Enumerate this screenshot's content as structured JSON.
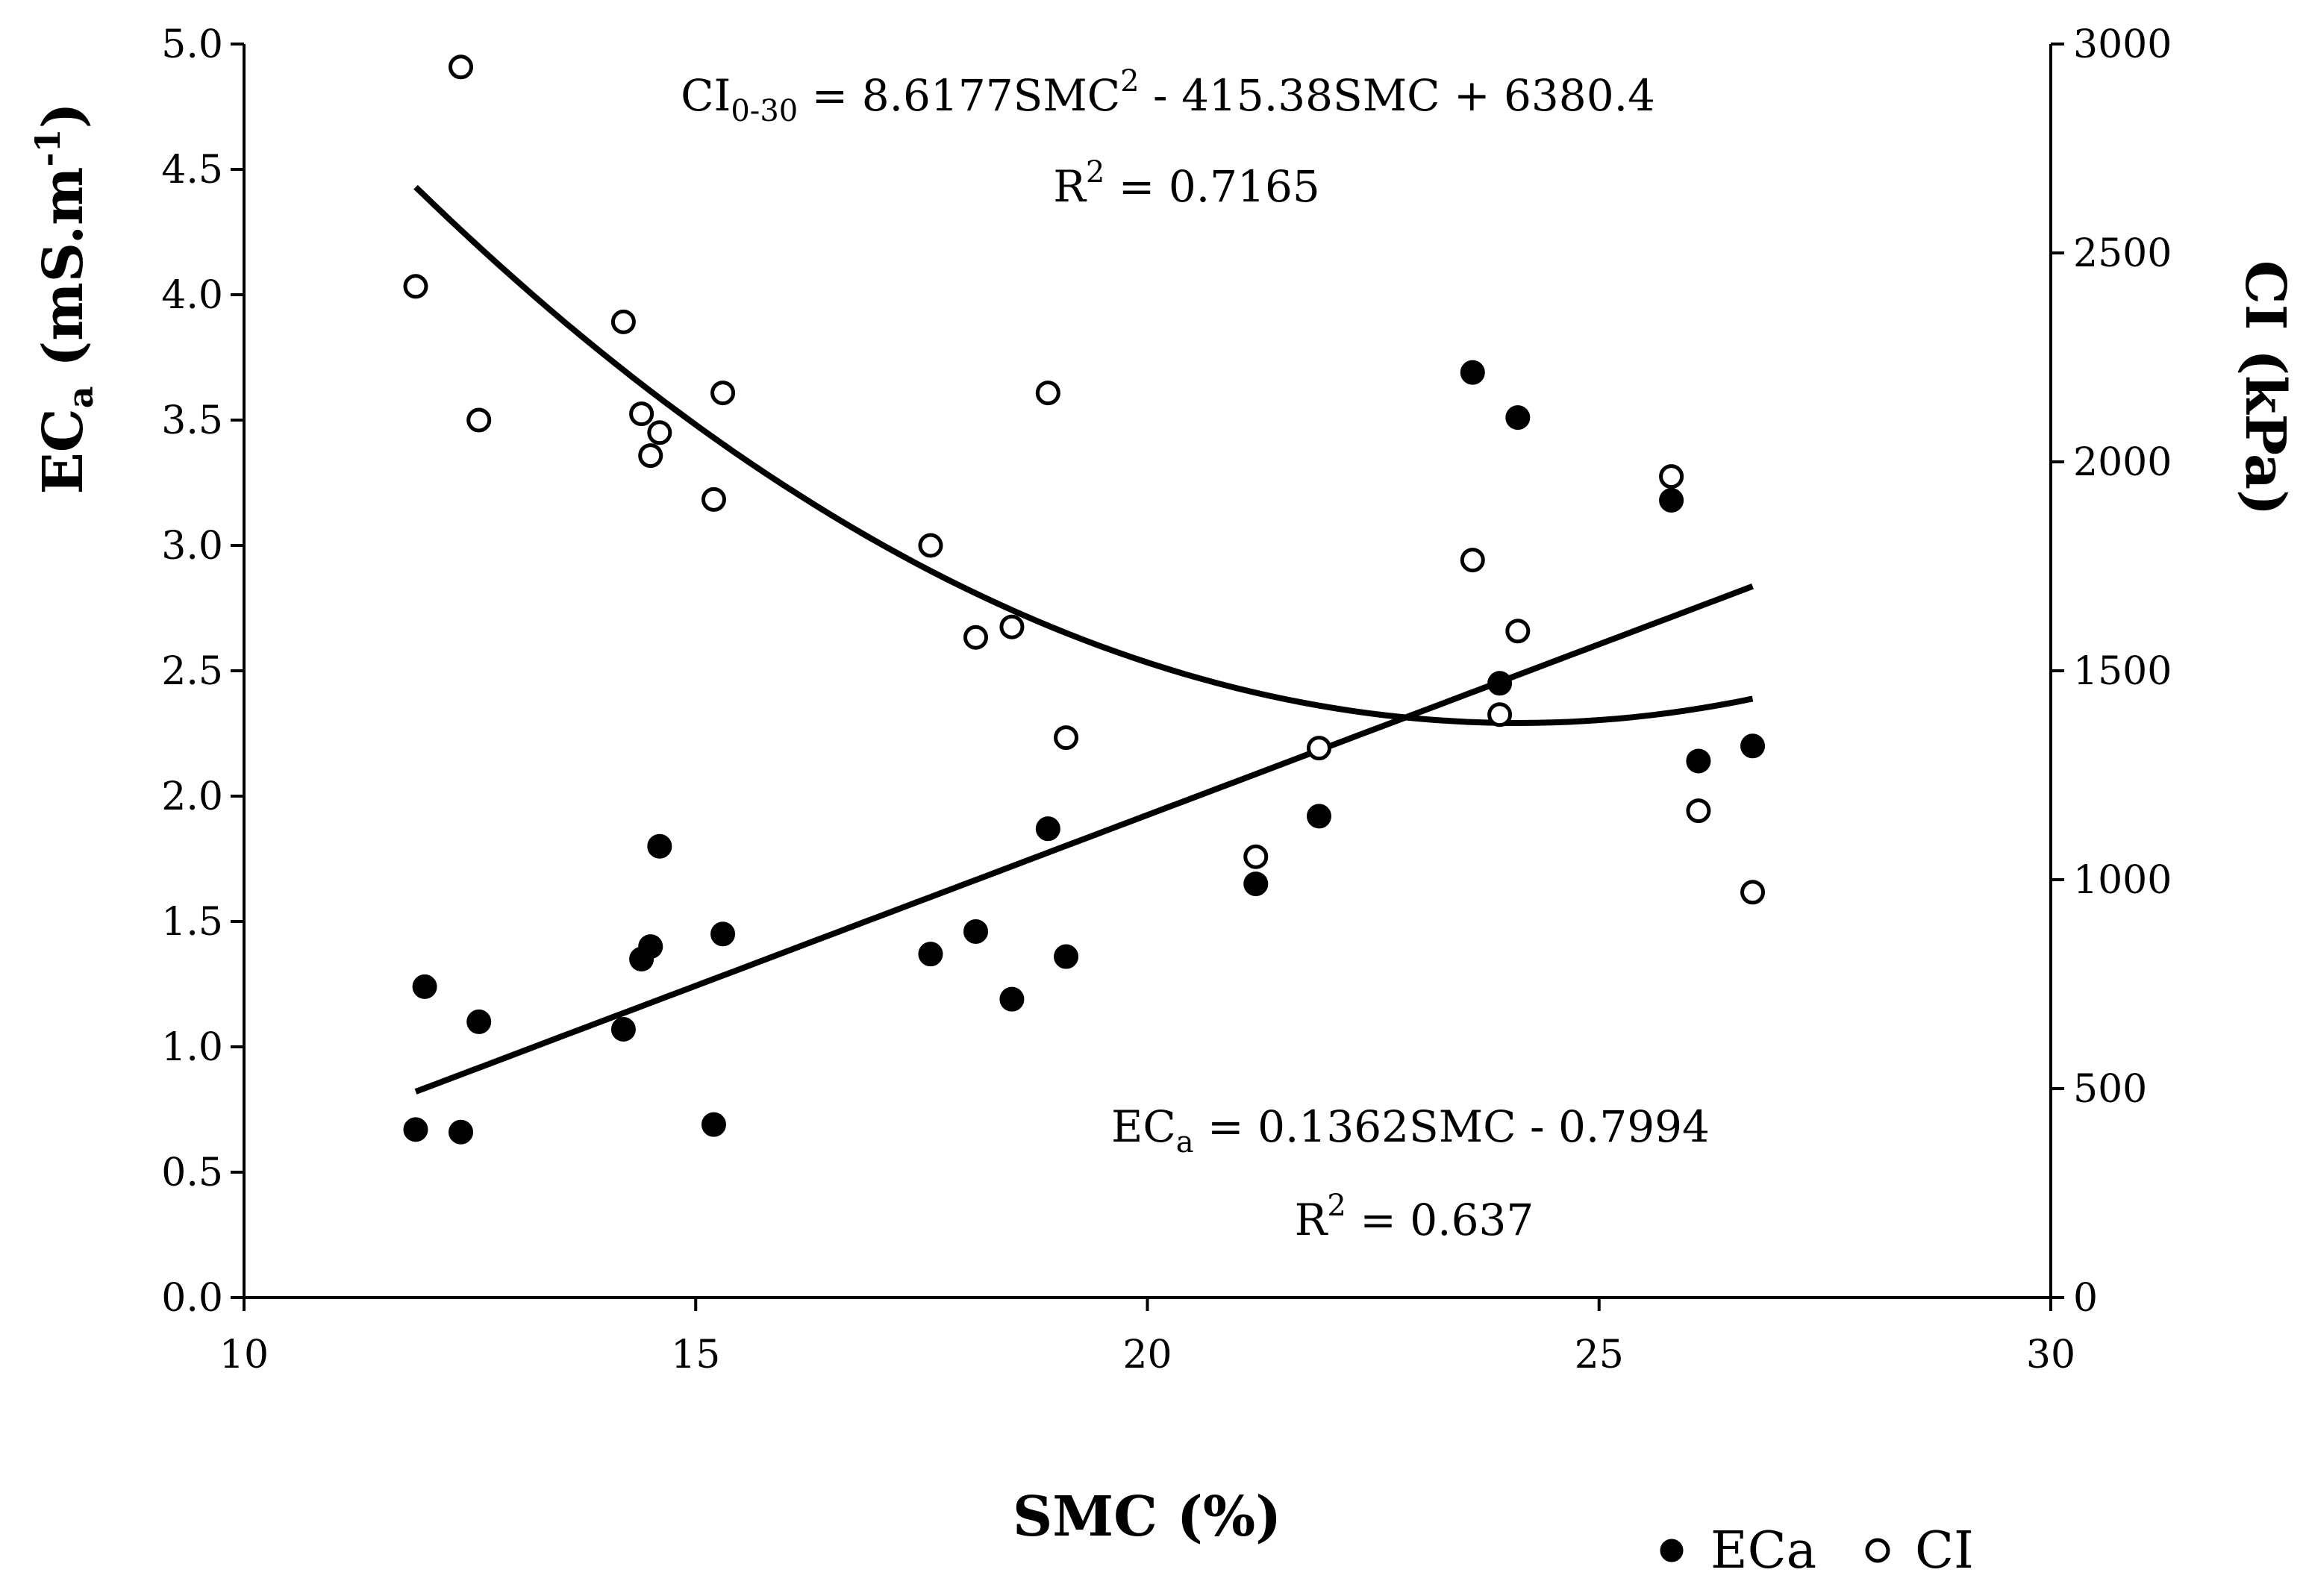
{
  "chart_data": {
    "type": "scatter",
    "xlabel": "SMC (%)",
    "y_left_label": {
      "main": "EC",
      "sub": "a",
      "rest": " (mS.m",
      "sup": "-1",
      "close": ")"
    },
    "y_right_label": "CI (kPa)",
    "x_axis": {
      "min": 10,
      "max": 30,
      "ticks": [
        10,
        15,
        20,
        25,
        30
      ]
    },
    "y_left": {
      "min": 0,
      "max": 5,
      "ticks": [
        "0.0",
        "0.5",
        "1.0",
        "1.5",
        "2.0",
        "2.5",
        "3.0",
        "3.5",
        "4.0",
        "4.5",
        "5.0"
      ]
    },
    "y_right": {
      "min": 0,
      "max": 3000,
      "ticks": [
        "0",
        "500",
        "1000",
        "1500",
        "2000",
        "2500",
        "3000"
      ]
    },
    "series": [
      {
        "name": "ECa",
        "axis": "left",
        "marker": "filled-circle",
        "points": [
          [
            11.9,
            0.67
          ],
          [
            12.0,
            1.24
          ],
          [
            12.4,
            0.66
          ],
          [
            12.6,
            1.1
          ],
          [
            14.2,
            1.07
          ],
          [
            14.4,
            1.35
          ],
          [
            14.5,
            1.4
          ],
          [
            14.6,
            1.8
          ],
          [
            15.2,
            0.69
          ],
          [
            15.3,
            1.45
          ],
          [
            17.6,
            1.37
          ],
          [
            18.1,
            1.46
          ],
          [
            18.5,
            1.19
          ],
          [
            18.9,
            1.87
          ],
          [
            19.1,
            1.36
          ],
          [
            21.2,
            1.65
          ],
          [
            21.9,
            1.92
          ],
          [
            23.6,
            3.69
          ],
          [
            23.9,
            2.45
          ],
          [
            24.1,
            3.51
          ],
          [
            25.8,
            3.18
          ],
          [
            26.1,
            2.14
          ],
          [
            26.7,
            2.2
          ]
        ]
      },
      {
        "name": "CI",
        "axis": "right",
        "marker": "open-circle",
        "points": [
          [
            11.9,
            2420
          ],
          [
            12.4,
            2945
          ],
          [
            12.6,
            2100
          ],
          [
            14.2,
            2335
          ],
          [
            14.4,
            2115
          ],
          [
            14.5,
            2015
          ],
          [
            14.6,
            2070
          ],
          [
            15.2,
            1910
          ],
          [
            15.3,
            2165
          ],
          [
            17.6,
            1800
          ],
          [
            18.1,
            1580
          ],
          [
            18.5,
            1605
          ],
          [
            18.9,
            2165
          ],
          [
            19.1,
            1340
          ],
          [
            21.2,
            1055
          ],
          [
            21.9,
            1315
          ],
          [
            23.6,
            1765
          ],
          [
            23.9,
            1395
          ],
          [
            24.1,
            1595
          ],
          [
            25.8,
            1965
          ],
          [
            26.1,
            1165
          ],
          [
            26.7,
            970
          ]
        ]
      }
    ],
    "trendlines": [
      {
        "series": "CI",
        "type": "polynomial",
        "coefficients": [
          8.6177,
          -415.38,
          6380.4
        ],
        "x_range": [
          11.9,
          26.7
        ]
      },
      {
        "series": "ECa",
        "type": "linear",
        "slope": 0.1362,
        "intercept": -0.7994,
        "x_range": [
          11.9,
          26.7
        ]
      }
    ],
    "annotations": {
      "ci_equation": {
        "prefix": "CI",
        "sub": "0-30",
        "mid": " = 8.6177SMC",
        "sup": "2",
        "rest": " - 415.38SMC + 6380.4"
      },
      "ci_r2": {
        "prefix": "R",
        "sup": "2",
        "rest": " = 0.7165"
      },
      "eca_equation": {
        "prefix": "EC",
        "sub": "a",
        "rest": " = 0.1362SMC - 0.7994"
      },
      "eca_r2": {
        "prefix": "R",
        "sup": "2",
        "rest": " = 0.637"
      }
    },
    "legend": {
      "position": "bottom-right",
      "items": [
        "ECa",
        "CI"
      ]
    }
  }
}
